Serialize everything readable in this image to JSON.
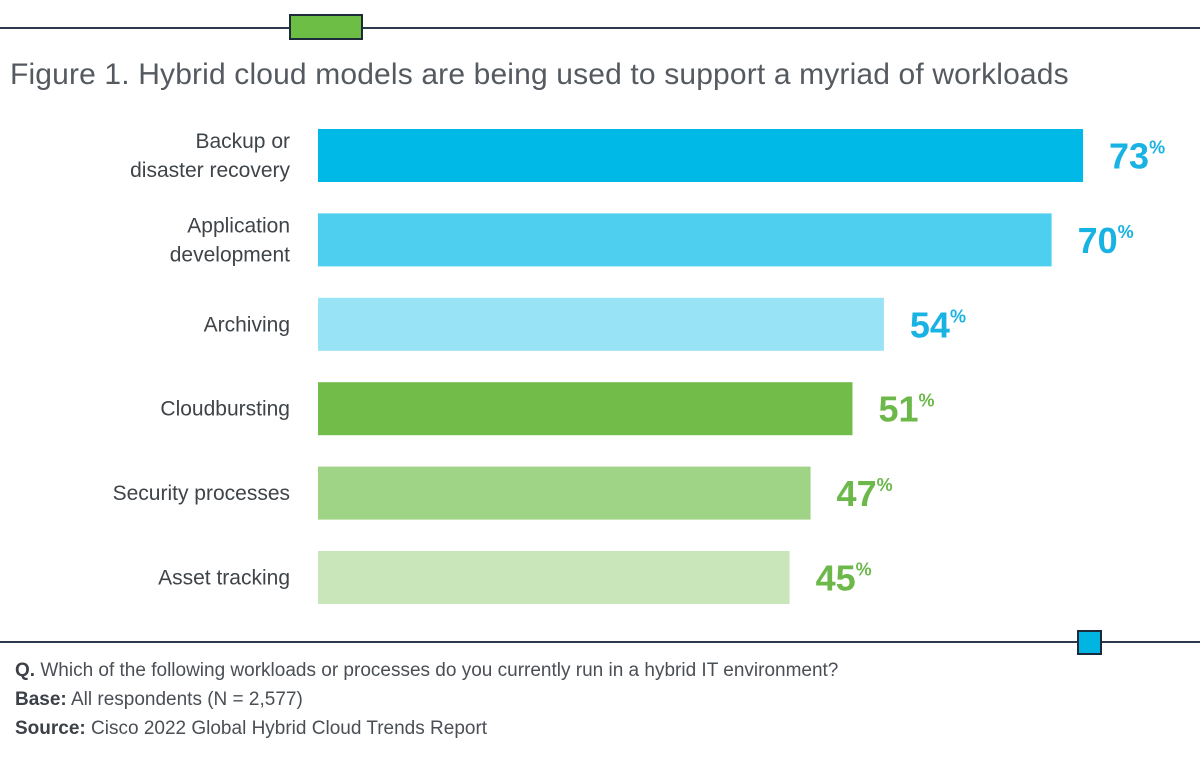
{
  "title": "Figure 1. Hybrid cloud models are being used to support a myriad of workloads",
  "chart_data": {
    "type": "bar",
    "orientation": "horizontal",
    "title": "Figure 1. Hybrid cloud models are being used to support a myriad of workloads",
    "categories": [
      [
        "Backup or",
        "disaster recovery"
      ],
      [
        "Application",
        "development"
      ],
      [
        "Archiving"
      ],
      [
        "Cloudbursting"
      ],
      [
        "Security processes"
      ],
      [
        "Asset tracking"
      ]
    ],
    "values": [
      73,
      70,
      54,
      51,
      47,
      45
    ],
    "value_labels": [
      "73",
      "70",
      "54",
      "51",
      "47",
      "45"
    ],
    "unit": "%",
    "bar_colors": [
      "#00b9e7",
      "#4ecff0",
      "#99e3f6",
      "#72bd49",
      "#9fd385",
      "#c9e6bb"
    ],
    "label_colors": [
      "#19b3e3",
      "#19b3e3",
      "#19b3e3",
      "#6cb84a",
      "#6cb84a",
      "#6cb84a"
    ],
    "xlim": [
      0,
      100
    ],
    "grid": false,
    "legend": "none"
  },
  "footnotes": {
    "question_label": "Q.",
    "question_text": " Which of the following workloads or processes do you currently run in a hybrid IT environment?",
    "base_label": "Base:",
    "base_text": " All respondents (N = 2,577)",
    "source_label": "Source:",
    "source_text": " Cisco 2022 Global Hybrid Cloud Trends Report"
  },
  "colors": {
    "rule": "#2d3a4c",
    "marker_green": "#6cbf44",
    "marker_blue": "#00b5e2"
  }
}
